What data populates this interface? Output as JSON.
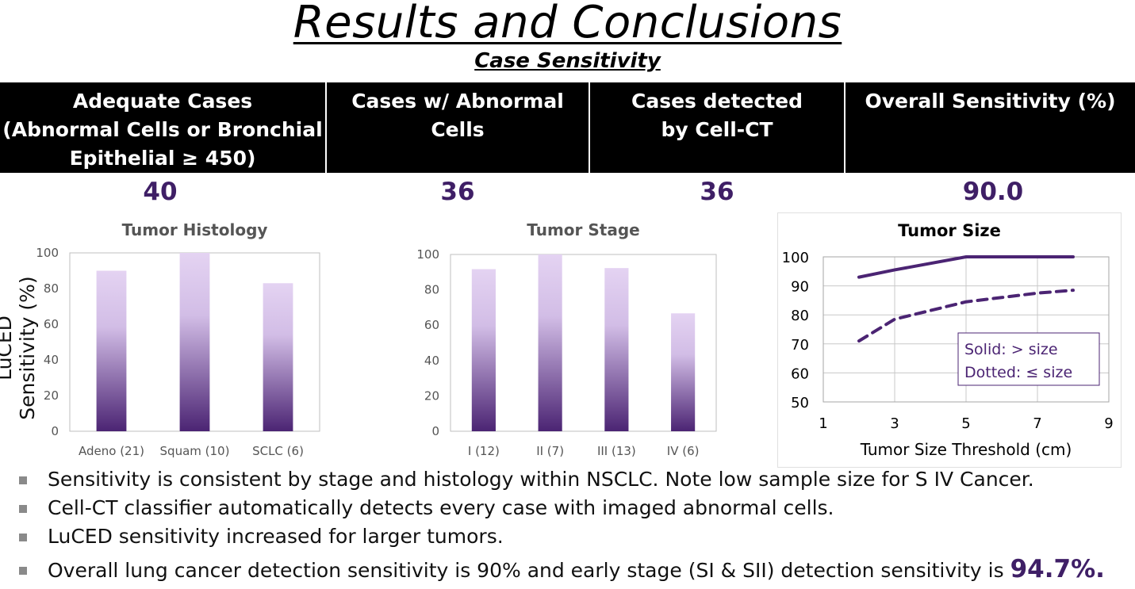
{
  "title": "Results and Conclusions",
  "subtitle": "Case Sensitivity",
  "table": {
    "headers": [
      [
        "Adequate Cases",
        "(Abnormal Cells or Bronchial",
        "Epithelial  ≥ 450)"
      ],
      [
        "Cases w/ Abnormal Cells"
      ],
      [
        "Cases detected",
        "by Cell-CT"
      ],
      [
        "Overall Sensitivity (%)"
      ]
    ],
    "values": [
      "40",
      "36",
      "36",
      "90.0"
    ]
  },
  "shared_ylabel": "LuCED Sensitivity (%)",
  "colors": {
    "accent": "#3f1f66",
    "bar_top": "#e4d3f2",
    "bar_bottom": "#4b2473",
    "line": "#4b2473"
  },
  "chart_data": [
    {
      "type": "bar",
      "title": "Tumor Histology",
      "categories": [
        "Adeno (21)",
        "Squam (10)",
        "SCLC (6)"
      ],
      "values": [
        90,
        100,
        83
      ],
      "ylim": [
        0,
        100
      ],
      "yticks": [
        "0",
        "20",
        "40",
        "60",
        "80",
        "100"
      ],
      "ylabel": "LuCED Sensitivity (%)",
      "grid": false
    },
    {
      "type": "bar",
      "title": "Tumor Stage",
      "categories": [
        "I (12)",
        "II (7)",
        "III (13)",
        "IV (6)"
      ],
      "values": [
        91.7,
        100,
        92.3,
        66.7
      ],
      "ylim": [
        0,
        100
      ],
      "yticks": [
        "0",
        "20",
        "40",
        "60",
        "80",
        "100"
      ],
      "grid": false
    },
    {
      "type": "line",
      "title": "Tumor Size",
      "xlabel": "Tumor Size Threshold  (cm)",
      "xlim": [
        1,
        9
      ],
      "ylim": [
        50,
        100
      ],
      "xticks": [
        "1",
        "3",
        "5",
        "7",
        "9"
      ],
      "yticks": [
        "50",
        "60",
        "70",
        "80",
        "90",
        "100"
      ],
      "grid": true,
      "series": [
        {
          "style": "solid",
          "x": [
            2,
            3,
            5,
            6,
            7,
            8
          ],
          "y": [
            93,
            95.5,
            100,
            100,
            100,
            100
          ]
        },
        {
          "style": "dotted",
          "x": [
            2,
            3,
            4,
            5,
            6,
            7,
            8
          ],
          "y": [
            71,
            78.5,
            81.5,
            84.5,
            86,
            87.5,
            88.5
          ]
        }
      ],
      "legend_lines": [
        "Solid: > size",
        "Dotted: ≤ size"
      ],
      "legend_position": "bottom-right"
    }
  ],
  "bullets": [
    {
      "text": "Sensitivity is consistent by stage and histology within NSCLC.  Note low sample size for S IV Cancer."
    },
    {
      "text": "Cell-CT classifier automatically detects every case with imaged abnormal cells."
    },
    {
      "text": "LuCED sensitivity increased for larger tumors."
    },
    {
      "text": "Overall lung cancer detection sensitivity is 90% and early stage (SI & SII) detection sensitivity is ",
      "emphasis": "94.7%."
    }
  ]
}
